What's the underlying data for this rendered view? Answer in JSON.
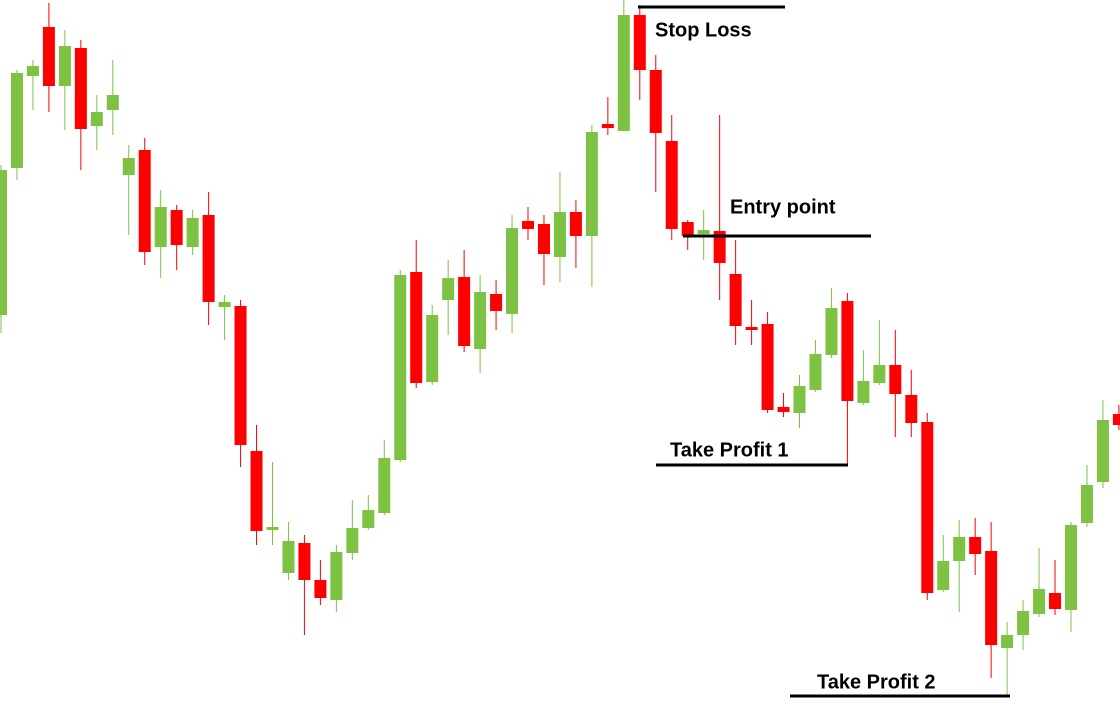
{
  "chart_data": {
    "type": "candlestick",
    "ylim": [
      0,
      706
    ],
    "up_color": "#7dc242",
    "down_color": "#ff0000",
    "categories": [
      null,
      null,
      null,
      null,
      null,
      null,
      null,
      null,
      null,
      null,
      null,
      null,
      null,
      null,
      null,
      null,
      null,
      null,
      null,
      null,
      null,
      null,
      null,
      null,
      null,
      null,
      null,
      null,
      null,
      null,
      null,
      null,
      null,
      null,
      null,
      null,
      null,
      null,
      null,
      null,
      null,
      null,
      null,
      null,
      null,
      null,
      null,
      null,
      null,
      null,
      null,
      null,
      null,
      null,
      null,
      null,
      null,
      null,
      null,
      null,
      null,
      null,
      null,
      null,
      null,
      null,
      null,
      null,
      null,
      null,
      null
    ],
    "open": [
      391,
      538,
      630,
      679,
      620,
      658,
      580,
      596,
      531,
      556,
      459,
      496,
      459,
      491,
      399,
      400,
      255,
      176,
      133,
      163,
      126,
      106,
      153,
      178,
      193,
      246,
      434,
      324,
      406,
      429,
      357,
      412,
      392,
      485,
      482,
      449,
      494,
      470,
      582,
      575,
      691,
      636,
      565,
      484,
      472,
      475,
      432,
      379,
      382,
      299,
      293,
      316,
      351,
      405,
      303,
      323,
      341,
      311,
      284,
      116,
      145,
      169,
      155,
      58,
      71,
      92,
      113,
      96,
      183,
      224,
      292
    ],
    "close": [
      536,
      633,
      640,
      620,
      660,
      577,
      594,
      611,
      548,
      454,
      499,
      461,
      488,
      404,
      404,
      261,
      175,
      179,
      165,
      126,
      108,
      154,
      178,
      196,
      248,
      431,
      323,
      391,
      428,
      360,
      414,
      395,
      478,
      477,
      452,
      494,
      470,
      574,
      578,
      691,
      636,
      573,
      477,
      470,
      476,
      443,
      380,
      376,
      296,
      294,
      320,
      352,
      398,
      305,
      325,
      341,
      312,
      283,
      113,
      145,
      169,
      152,
      61,
      71,
      95,
      117,
      97,
      181,
      221,
      286,
      281
    ],
    "high": [
      541,
      636,
      646,
      703,
      676,
      666,
      611,
      646,
      561,
      568,
      516,
      501,
      496,
      514,
      411,
      406,
      281,
      244,
      184,
      171,
      146,
      161,
      206,
      211,
      266,
      436,
      466,
      401,
      446,
      456,
      431,
      426,
      491,
      499,
      491,
      534,
      506,
      581,
      609,
      706,
      701,
      651,
      591,
      486,
      496,
      591,
      466,
      406,
      394,
      313,
      331,
      366,
      418,
      413,
      356,
      386,
      376,
      336,
      293,
      171,
      186,
      188,
      184,
      84,
      106,
      158,
      146,
      184,
      241,
      306,
      301
    ],
    "low": [
      373,
      526,
      596,
      594,
      576,
      536,
      556,
      571,
      471,
      441,
      428,
      436,
      451,
      381,
      366,
      239,
      161,
      161,
      126,
      71,
      101,
      94,
      146,
      176,
      191,
      244,
      318,
      321,
      371,
      354,
      333,
      376,
      373,
      466,
      421,
      424,
      438,
      419,
      571,
      575,
      606,
      514,
      466,
      456,
      446,
      406,
      361,
      361,
      293,
      289,
      278,
      314,
      348,
      240,
      301,
      321,
      269,
      269,
      106,
      114,
      94,
      131,
      28,
      11,
      56,
      89,
      91,
      74,
      179,
      218,
      276
    ],
    "annotations": [
      {
        "text": "Stop Loss",
        "value": 699
      },
      {
        "text": "Entry point",
        "value": 470
      },
      {
        "text": "Take Profit 1",
        "value": 241
      },
      {
        "text": "Take Profit 2",
        "value": 10
      }
    ]
  }
}
